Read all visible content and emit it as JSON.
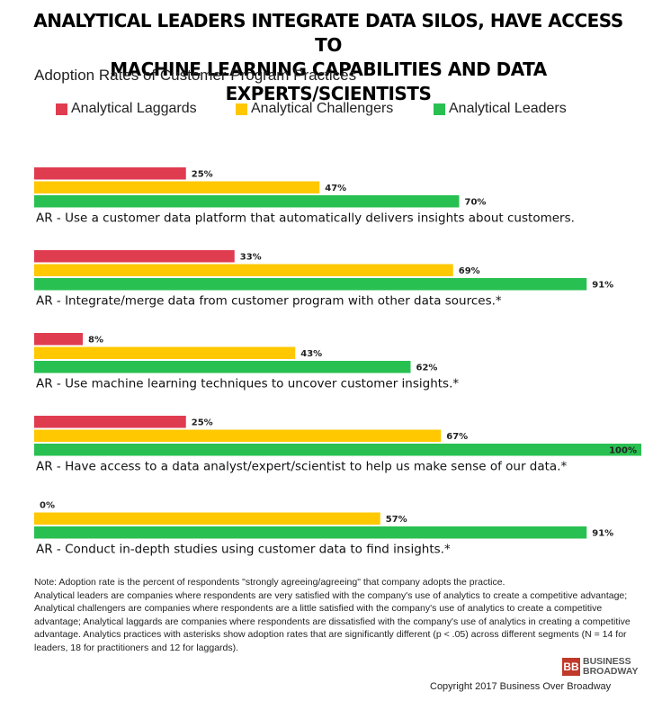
{
  "title": "ANALYTICAL LEADERS INTEGRATE DATA SILOS, HAVE ACCESS TO\nMACHINE LEARNING CAPABILITIES AND DATA EXPERTS/SCIENTISTS",
  "subtitle": "Adoption Rates of Customer Program Practices",
  "chart_data": {
    "type": "bar",
    "orientation": "horizontal",
    "value_suffix": "%",
    "xlim": [
      0,
      100
    ],
    "grid": false,
    "legend_position": "top",
    "categories": [
      "AR - Use a customer data platform that automatically delivers insights about customers.",
      "AR - Integrate/merge data from customer program with other data sources.*",
      "AR - Use machine learning techniques to uncover customer insights.*",
      "AR - Have access to a data analyst/expert/scientist to help us make sense of our data.*",
      "AR - Conduct in-depth studies using customer data to find insights.*"
    ],
    "series": [
      {
        "name": "Analytical Laggards",
        "color": "#e03c50",
        "values": [
          25,
          33,
          8,
          25,
          0
        ]
      },
      {
        "name": "Analytical Challengers",
        "color": "#ffc800",
        "values": [
          47,
          69,
          43,
          67,
          57
        ]
      },
      {
        "name": "Analytical Leaders",
        "color": "#28c051",
        "values": [
          70,
          91,
          62,
          100,
          91
        ]
      }
    ]
  },
  "note": [
    "Note: Adoption rate is the percent of respondents  \"strongly agreeing/agreeing\" that company adopts the practice.",
    "Analytical leaders are companies where respondents are very satisfied with the company's use of analytics to create a competitive advantage; Analytical challengers are companies where respondents are a little satisfied with the company's use of analytics to create a competitive advantage; Analytical laggards are companies where respondents are dissatisfied with the company's use of analytics in creating a competitive advantage. Analytics practices with asterisks show adoption rates that are significantly different (p < .05) across different segments (N = 14 for leaders, 18 for practitioners and 12 for laggards)."
  ],
  "logo": {
    "mark": "BB",
    "line1": "BUSINESS",
    "line2": "BROADWAY"
  },
  "copyright": "Copyright 2017 Business Over Broadway"
}
